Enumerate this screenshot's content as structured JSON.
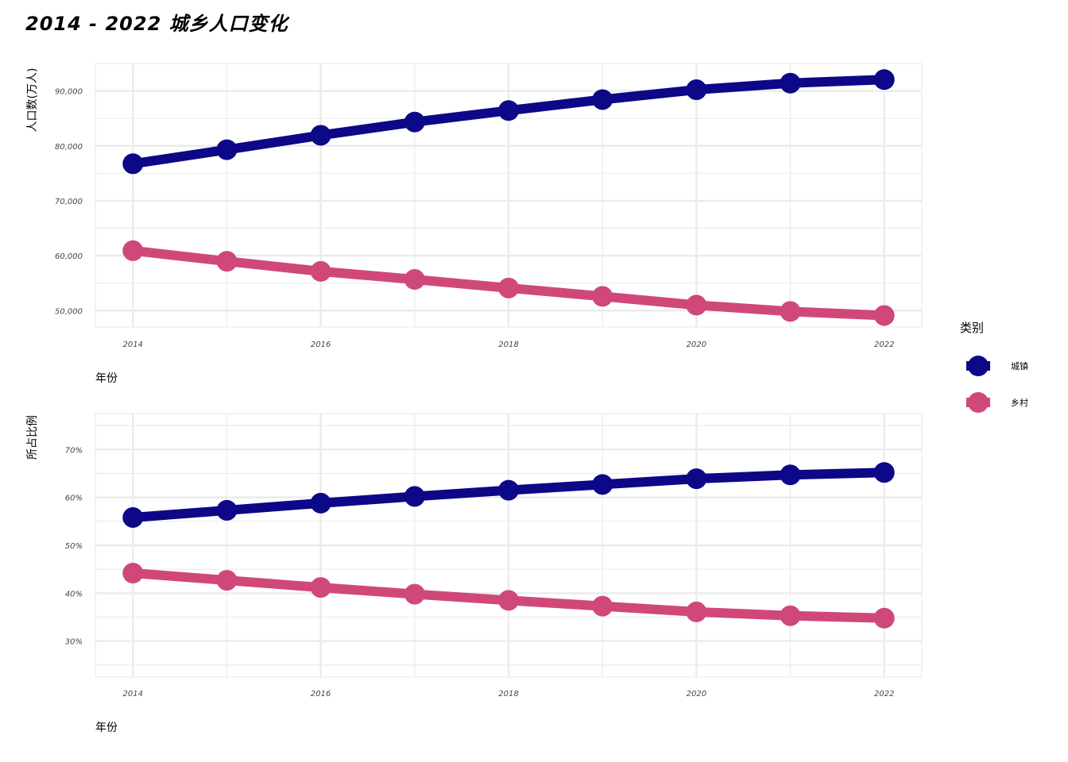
{
  "title": "2014 - 2022 城乡人口变化",
  "colors": {
    "urban": "#0d0887",
    "rural": "#d0487a",
    "grid": "#ebebeb"
  },
  "legend": {
    "title": "类别",
    "items": [
      {
        "label": "城镇",
        "color": "#0d0887"
      },
      {
        "label": "乡村",
        "color": "#d0487a"
      }
    ],
    "placement": "right"
  },
  "chart_data": [
    {
      "type": "line",
      "xlabel": "年份",
      "ylabel": "人口数(万人)",
      "x": [
        2014,
        2015,
        2016,
        2017,
        2018,
        2019,
        2020,
        2021,
        2022
      ],
      "xticks": [
        2014,
        2016,
        2018,
        2020,
        2022
      ],
      "xlim": [
        2013.6,
        2022.4
      ],
      "ylim": [
        47000,
        95000
      ],
      "yticks": [
        50000,
        60000,
        70000,
        80000,
        90000
      ],
      "ytick_labels": [
        "50,000",
        "60,000",
        "70,000",
        "80,000",
        "90,000"
      ],
      "grid": true,
      "series": [
        {
          "name": "城镇",
          "color": "#0d0887",
          "values": [
            76738,
            79302,
            81924,
            84343,
            86433,
            88426,
            90220,
            91425,
            92071
          ]
        },
        {
          "name": "乡村",
          "color": "#d0487a",
          "values": [
            60908,
            58973,
            57135,
            55668,
            54108,
            52582,
            50992,
            49835,
            49104
          ]
        }
      ]
    },
    {
      "type": "line",
      "xlabel": "年份",
      "ylabel": "所占比例",
      "x": [
        2014,
        2015,
        2016,
        2017,
        2018,
        2019,
        2020,
        2021,
        2022
      ],
      "xticks": [
        2014,
        2016,
        2018,
        2020,
        2022
      ],
      "xlim": [
        2013.6,
        2022.4
      ],
      "ylim": [
        22.5,
        77.5
      ],
      "yticks": [
        30,
        40,
        50,
        60,
        70
      ],
      "ytick_labels": [
        "30%",
        "40%",
        "50%",
        "60%",
        "70%"
      ],
      "grid": true,
      "series": [
        {
          "name": "城镇",
          "color": "#0d0887",
          "values": [
            55.8,
            57.3,
            58.8,
            60.2,
            61.5,
            62.7,
            63.9,
            64.7,
            65.2
          ]
        },
        {
          "name": "乡村",
          "color": "#d0487a",
          "values": [
            44.2,
            42.7,
            41.2,
            39.8,
            38.5,
            37.3,
            36.1,
            35.3,
            34.8
          ]
        }
      ]
    }
  ]
}
